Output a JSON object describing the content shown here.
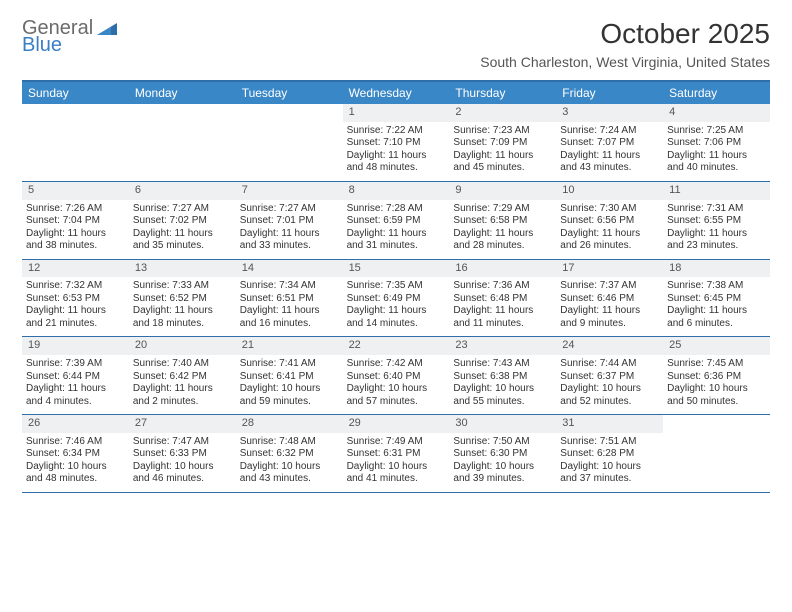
{
  "logo": {
    "word1": "General",
    "word2": "Blue"
  },
  "title": "October 2025",
  "location": "South Charleston, West Virginia, United States",
  "colors": {
    "header_bg": "#3a87c7",
    "header_text": "#ffffff",
    "border": "#2f6fa8",
    "daynum_bg": "#eef0f2",
    "logo_gray": "#6b6b6b",
    "logo_blue": "#3a7fc4",
    "text": "#333333"
  },
  "day_names": [
    "Sunday",
    "Monday",
    "Tuesday",
    "Wednesday",
    "Thursday",
    "Friday",
    "Saturday"
  ],
  "first_weekday_index": 3,
  "days": [
    {
      "n": 1,
      "sunrise": "7:22 AM",
      "sunset": "7:10 PM",
      "daylight": "11 hours and 48 minutes."
    },
    {
      "n": 2,
      "sunrise": "7:23 AM",
      "sunset": "7:09 PM",
      "daylight": "11 hours and 45 minutes."
    },
    {
      "n": 3,
      "sunrise": "7:24 AM",
      "sunset": "7:07 PM",
      "daylight": "11 hours and 43 minutes."
    },
    {
      "n": 4,
      "sunrise": "7:25 AM",
      "sunset": "7:06 PM",
      "daylight": "11 hours and 40 minutes."
    },
    {
      "n": 5,
      "sunrise": "7:26 AM",
      "sunset": "7:04 PM",
      "daylight": "11 hours and 38 minutes."
    },
    {
      "n": 6,
      "sunrise": "7:27 AM",
      "sunset": "7:02 PM",
      "daylight": "11 hours and 35 minutes."
    },
    {
      "n": 7,
      "sunrise": "7:27 AM",
      "sunset": "7:01 PM",
      "daylight": "11 hours and 33 minutes."
    },
    {
      "n": 8,
      "sunrise": "7:28 AM",
      "sunset": "6:59 PM",
      "daylight": "11 hours and 31 minutes."
    },
    {
      "n": 9,
      "sunrise": "7:29 AM",
      "sunset": "6:58 PM",
      "daylight": "11 hours and 28 minutes."
    },
    {
      "n": 10,
      "sunrise": "7:30 AM",
      "sunset": "6:56 PM",
      "daylight": "11 hours and 26 minutes."
    },
    {
      "n": 11,
      "sunrise": "7:31 AM",
      "sunset": "6:55 PM",
      "daylight": "11 hours and 23 minutes."
    },
    {
      "n": 12,
      "sunrise": "7:32 AM",
      "sunset": "6:53 PM",
      "daylight": "11 hours and 21 minutes."
    },
    {
      "n": 13,
      "sunrise": "7:33 AM",
      "sunset": "6:52 PM",
      "daylight": "11 hours and 18 minutes."
    },
    {
      "n": 14,
      "sunrise": "7:34 AM",
      "sunset": "6:51 PM",
      "daylight": "11 hours and 16 minutes."
    },
    {
      "n": 15,
      "sunrise": "7:35 AM",
      "sunset": "6:49 PM",
      "daylight": "11 hours and 14 minutes."
    },
    {
      "n": 16,
      "sunrise": "7:36 AM",
      "sunset": "6:48 PM",
      "daylight": "11 hours and 11 minutes."
    },
    {
      "n": 17,
      "sunrise": "7:37 AM",
      "sunset": "6:46 PM",
      "daylight": "11 hours and 9 minutes."
    },
    {
      "n": 18,
      "sunrise": "7:38 AM",
      "sunset": "6:45 PM",
      "daylight": "11 hours and 6 minutes."
    },
    {
      "n": 19,
      "sunrise": "7:39 AM",
      "sunset": "6:44 PM",
      "daylight": "11 hours and 4 minutes."
    },
    {
      "n": 20,
      "sunrise": "7:40 AM",
      "sunset": "6:42 PM",
      "daylight": "11 hours and 2 minutes."
    },
    {
      "n": 21,
      "sunrise": "7:41 AM",
      "sunset": "6:41 PM",
      "daylight": "10 hours and 59 minutes."
    },
    {
      "n": 22,
      "sunrise": "7:42 AM",
      "sunset": "6:40 PM",
      "daylight": "10 hours and 57 minutes."
    },
    {
      "n": 23,
      "sunrise": "7:43 AM",
      "sunset": "6:38 PM",
      "daylight": "10 hours and 55 minutes."
    },
    {
      "n": 24,
      "sunrise": "7:44 AM",
      "sunset": "6:37 PM",
      "daylight": "10 hours and 52 minutes."
    },
    {
      "n": 25,
      "sunrise": "7:45 AM",
      "sunset": "6:36 PM",
      "daylight": "10 hours and 50 minutes."
    },
    {
      "n": 26,
      "sunrise": "7:46 AM",
      "sunset": "6:34 PM",
      "daylight": "10 hours and 48 minutes."
    },
    {
      "n": 27,
      "sunrise": "7:47 AM",
      "sunset": "6:33 PM",
      "daylight": "10 hours and 46 minutes."
    },
    {
      "n": 28,
      "sunrise": "7:48 AM",
      "sunset": "6:32 PM",
      "daylight": "10 hours and 43 minutes."
    },
    {
      "n": 29,
      "sunrise": "7:49 AM",
      "sunset": "6:31 PM",
      "daylight": "10 hours and 41 minutes."
    },
    {
      "n": 30,
      "sunrise": "7:50 AM",
      "sunset": "6:30 PM",
      "daylight": "10 hours and 39 minutes."
    },
    {
      "n": 31,
      "sunrise": "7:51 AM",
      "sunset": "6:28 PM",
      "daylight": "10 hours and 37 minutes."
    }
  ],
  "labels": {
    "sunrise": "Sunrise:",
    "sunset": "Sunset:",
    "daylight": "Daylight:"
  }
}
